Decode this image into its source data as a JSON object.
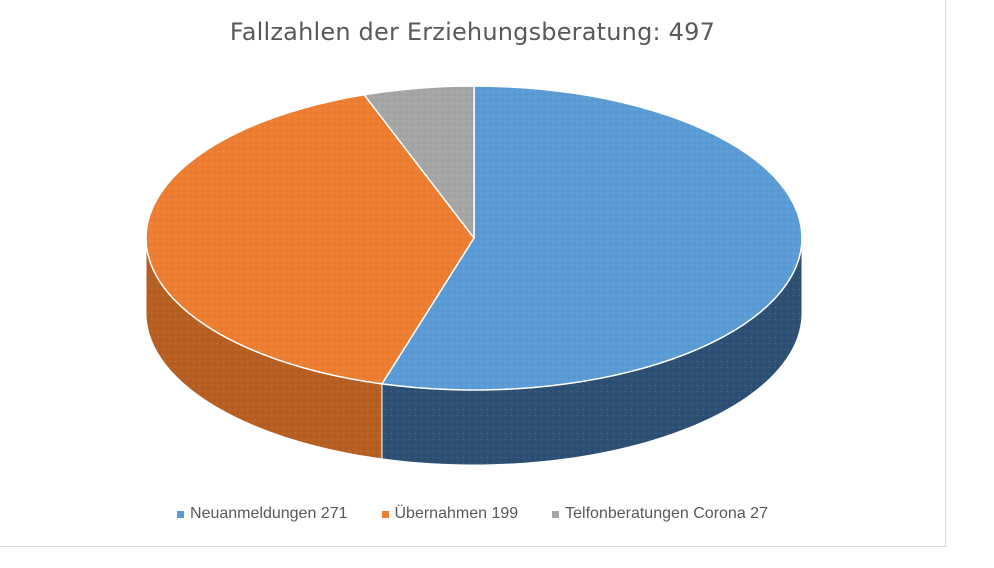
{
  "chart_data": {
    "type": "pie",
    "title": "Fallzahlen der Erziehungsberatung: 497",
    "categories": [
      "Neuanmeldungen 271",
      "Übernahmen 199",
      "Telfonberatungen Corona 27"
    ],
    "values": [
      271,
      199,
      27
    ],
    "colors": [
      "#5b9bd5",
      "#ed7d31",
      "#a5a5a5"
    ],
    "side_colors": [
      "#2d4f73",
      "#b75e23",
      "#7f7f7f"
    ],
    "legend_position": "bottom",
    "style": "3d"
  }
}
